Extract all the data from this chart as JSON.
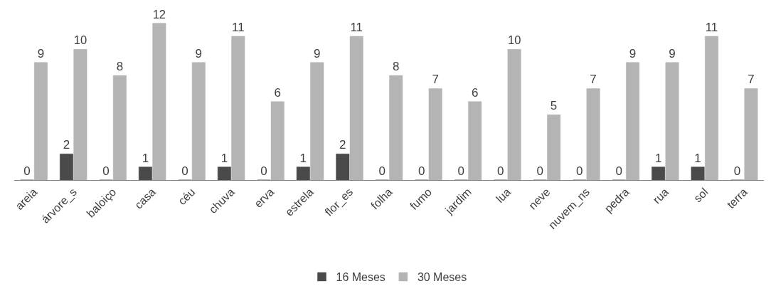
{
  "chart_data": {
    "type": "bar",
    "categories": [
      "areia",
      "árvore_s",
      "baloiço",
      "casa",
      "céu",
      "chuva",
      "erva",
      "estrela",
      "flor_es",
      "folha",
      "fumo",
      "jardim",
      "lua",
      "neve",
      "nuvem_ns",
      "pedra",
      "rua",
      "sol",
      "terra"
    ],
    "series": [
      {
        "name": "16 Meses",
        "color": "#4a4a4a",
        "values": [
          0,
          2,
          0,
          1,
          0,
          1,
          0,
          1,
          2,
          0,
          0,
          0,
          0,
          0,
          0,
          0,
          1,
          1,
          0
        ]
      },
      {
        "name": "30 Meses",
        "color": "#b4b4b4",
        "values": [
          9,
          10,
          8,
          12,
          9,
          11,
          6,
          9,
          11,
          8,
          7,
          6,
          10,
          5,
          7,
          9,
          9,
          11,
          7
        ]
      }
    ],
    "data_labels": true,
    "legend": "bottom",
    "tick_labels": "x"
  }
}
